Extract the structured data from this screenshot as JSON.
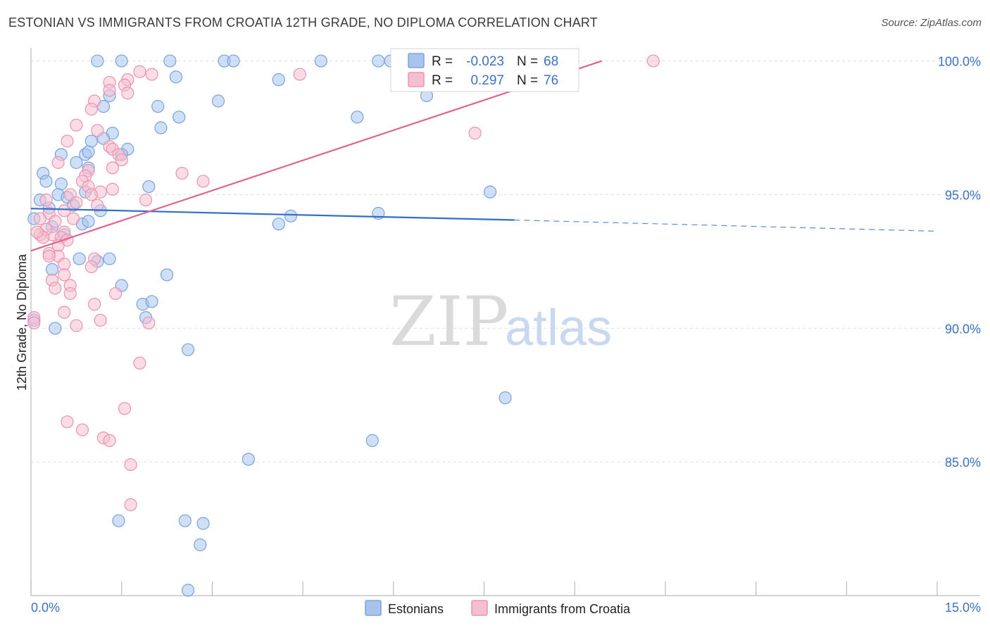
{
  "chart_data": {
    "type": "scatter",
    "title": "ESTONIAN VS IMMIGRANTS FROM CROATIA 12TH GRADE, NO DIPLOMA CORRELATION CHART",
    "source": "Source: ZipAtlas.com",
    "ylabel": "12th Grade, No Diploma",
    "xlim": [
      0,
      15
    ],
    "ylim": [
      80.0,
      100.7
    ],
    "y_ticks": [
      {
        "value": 100.0,
        "label": "100.0%"
      },
      {
        "value": 95.0,
        "label": "95.0%"
      },
      {
        "value": 90.0,
        "label": "90.0%"
      },
      {
        "value": 85.0,
        "label": "85.0%"
      }
    ],
    "x_tick_labels": {
      "min": "0.0%",
      "max": "15.0%"
    },
    "x_tick_marks": [
      0,
      1.5,
      3,
      4.5,
      6,
      7.5,
      9,
      10.5,
      12,
      13.5,
      15
    ],
    "watermark": {
      "zip": "ZIP",
      "atlas": "atlas"
    },
    "stats": [
      {
        "r_label": "R =",
        "r": "-0.023",
        "n_label": "N =",
        "n": "68"
      },
      {
        "r_label": "R =",
        "r": "0.297",
        "n_label": "N =",
        "n": "76"
      }
    ],
    "series": [
      {
        "name": "Estonians",
        "color": "#a8c4ec",
        "stroke": "#7aa3dd",
        "line_color": "#2f6fcc",
        "trend": {
          "x0": 0.0,
          "y0": 94.48,
          "x1": 8.0,
          "y1": 94.05,
          "dash_to_x": 15.0,
          "dash_to_y": 93.63
        },
        "points": [
          [
            1.1,
            100.0
          ],
          [
            1.5,
            100.0
          ],
          [
            2.3,
            100.0
          ],
          [
            3.2,
            100.0
          ],
          [
            3.35,
            100.0
          ],
          [
            4.8,
            100.0
          ],
          [
            5.75,
            100.0
          ],
          [
            5.95,
            100.0
          ],
          [
            2.4,
            99.4
          ],
          [
            4.1,
            99.3
          ],
          [
            1.3,
            98.7
          ],
          [
            6.55,
            98.7
          ],
          [
            1.2,
            98.3
          ],
          [
            2.1,
            98.3
          ],
          [
            3.1,
            98.5
          ],
          [
            2.45,
            97.9
          ],
          [
            5.4,
            97.9
          ],
          [
            2.15,
            97.5
          ],
          [
            1.35,
            97.3
          ],
          [
            1.0,
            97.0
          ],
          [
            1.2,
            97.1
          ],
          [
            1.6,
            96.7
          ],
          [
            0.5,
            96.5
          ],
          [
            0.9,
            96.5
          ],
          [
            0.95,
            96.6
          ],
          [
            0.75,
            96.2
          ],
          [
            0.95,
            96.0
          ],
          [
            0.2,
            95.8
          ],
          [
            0.25,
            95.5
          ],
          [
            0.5,
            95.4
          ],
          [
            1.95,
            95.3
          ],
          [
            0.45,
            95.0
          ],
          [
            0.6,
            94.9
          ],
          [
            0.9,
            95.1
          ],
          [
            7.6,
            95.1
          ],
          [
            0.7,
            94.6
          ],
          [
            1.15,
            94.4
          ],
          [
            0.3,
            94.5
          ],
          [
            0.05,
            94.1
          ],
          [
            0.35,
            93.8
          ],
          [
            0.85,
            93.9
          ],
          [
            0.95,
            94.0
          ],
          [
            4.1,
            93.9
          ],
          [
            4.3,
            94.2
          ],
          [
            5.75,
            94.3
          ],
          [
            0.8,
            92.6
          ],
          [
            1.1,
            92.5
          ],
          [
            2.25,
            92.0
          ],
          [
            0.35,
            92.2
          ],
          [
            1.5,
            91.6
          ],
          [
            1.85,
            90.9
          ],
          [
            2.0,
            91.0
          ],
          [
            1.9,
            90.4
          ],
          [
            0.4,
            90.0
          ],
          [
            0.05,
            90.3
          ],
          [
            2.6,
            89.2
          ],
          [
            7.85,
            87.4
          ],
          [
            5.65,
            85.8
          ],
          [
            3.6,
            85.1
          ],
          [
            1.45,
            82.8
          ],
          [
            2.55,
            82.8
          ],
          [
            2.85,
            82.7
          ],
          [
            2.8,
            81.9
          ],
          [
            2.6,
            80.2
          ],
          [
            1.5,
            96.5
          ],
          [
            0.15,
            94.8
          ],
          [
            1.3,
            92.6
          ],
          [
            0.55,
            93.5
          ]
        ]
      },
      {
        "name": "Immigrants from Croatia",
        "color": "#f6bfd0",
        "stroke": "#ec93b0",
        "line_color": "#e0648f",
        "trend": {
          "x0": 0.0,
          "y0": 92.9,
          "x1": 9.45,
          "y1": 100.0
        },
        "points": [
          [
            10.3,
            100.0
          ],
          [
            1.8,
            99.6
          ],
          [
            2.0,
            99.5
          ],
          [
            4.45,
            99.5
          ],
          [
            1.3,
            99.2
          ],
          [
            1.6,
            99.3
          ],
          [
            1.55,
            99.1
          ],
          [
            1.6,
            98.8
          ],
          [
            1.05,
            98.5
          ],
          [
            1.0,
            98.2
          ],
          [
            0.75,
            97.6
          ],
          [
            1.1,
            97.4
          ],
          [
            7.35,
            97.3
          ],
          [
            0.6,
            97.0
          ],
          [
            1.3,
            96.8
          ],
          [
            1.35,
            96.7
          ],
          [
            1.45,
            96.5
          ],
          [
            1.5,
            96.3
          ],
          [
            0.45,
            96.2
          ],
          [
            1.35,
            96.0
          ],
          [
            0.95,
            95.9
          ],
          [
            2.5,
            95.8
          ],
          [
            0.9,
            95.7
          ],
          [
            0.85,
            95.5
          ],
          [
            0.95,
            95.3
          ],
          [
            2.85,
            95.5
          ],
          [
            1.35,
            95.2
          ],
          [
            1.15,
            95.1
          ],
          [
            0.65,
            95.0
          ],
          [
            0.25,
            94.8
          ],
          [
            1.9,
            94.8
          ],
          [
            0.75,
            94.7
          ],
          [
            1.1,
            94.6
          ],
          [
            0.55,
            94.4
          ],
          [
            0.3,
            94.3
          ],
          [
            0.15,
            94.1
          ],
          [
            0.4,
            94.0
          ],
          [
            0.7,
            94.1
          ],
          [
            0.35,
            93.5
          ],
          [
            0.15,
            93.5
          ],
          [
            0.25,
            93.7
          ],
          [
            0.55,
            93.6
          ],
          [
            0.5,
            93.4
          ],
          [
            0.6,
            93.3
          ],
          [
            0.2,
            93.4
          ],
          [
            0.45,
            93.1
          ],
          [
            0.3,
            92.8
          ],
          [
            0.45,
            92.7
          ],
          [
            0.55,
            92.4
          ],
          [
            1.05,
            92.6
          ],
          [
            1.0,
            92.3
          ],
          [
            0.55,
            92.0
          ],
          [
            0.35,
            91.8
          ],
          [
            0.65,
            91.6
          ],
          [
            0.4,
            91.5
          ],
          [
            0.65,
            91.3
          ],
          [
            1.4,
            91.3
          ],
          [
            1.05,
            90.9
          ],
          [
            0.55,
            90.6
          ],
          [
            0.05,
            90.4
          ],
          [
            0.05,
            90.2
          ],
          [
            1.15,
            90.3
          ],
          [
            1.95,
            90.2
          ],
          [
            0.75,
            90.1
          ],
          [
            1.8,
            88.7
          ],
          [
            1.55,
            87.0
          ],
          [
            0.6,
            86.5
          ],
          [
            0.85,
            86.2
          ],
          [
            1.2,
            85.9
          ],
          [
            1.3,
            85.8
          ],
          [
            1.65,
            84.9
          ],
          [
            1.65,
            83.4
          ],
          [
            0.1,
            93.6
          ],
          [
            0.3,
            92.7
          ],
          [
            1.3,
            98.9
          ],
          [
            1.0,
            95.0
          ]
        ]
      }
    ]
  }
}
